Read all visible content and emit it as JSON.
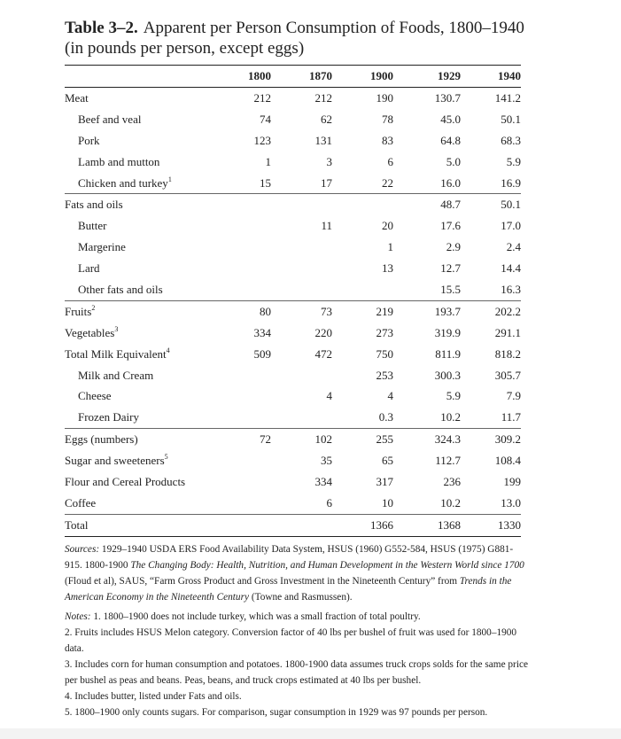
{
  "table": {
    "label": "Table 3–2.",
    "title": "Apparent per Person Consumption of Foods, 1800–1940",
    "subtitle": "(in pounds per person, except eggs)",
    "columns": [
      "1800",
      "1870",
      "1900",
      "1929",
      "1940"
    ],
    "sections": [
      [
        {
          "label": "Meat",
          "cells": [
            "212",
            "212",
            "190",
            "130.7",
            "141.2"
          ],
          "items": [
            {
              "label": "Beef and veal",
              "cells": [
                "74",
                "62",
                "78",
                "45.0",
                "50.1"
              ]
            },
            {
              "label": "Pork",
              "cells": [
                "123",
                "131",
                "83",
                "64.8",
                "68.3"
              ]
            },
            {
              "label": "Lamb and mutton",
              "cells": [
                "1",
                "3",
                "6",
                "5.0",
                "5.9"
              ]
            },
            {
              "label": "Chicken and turkey",
              "sup": "1",
              "cells": [
                "15",
                "17",
                "22",
                "16.0",
                "16.9"
              ]
            }
          ]
        }
      ],
      [
        {
          "label": "Fats and oils",
          "cells": [
            null,
            null,
            null,
            "48.7",
            "50.1"
          ],
          "items": [
            {
              "label": "Butter",
              "cells": [
                null,
                "11",
                "20",
                "17.6",
                "17.0"
              ]
            },
            {
              "label": "Margerine",
              "cells": [
                null,
                null,
                "1",
                "2.9",
                "2.4"
              ]
            },
            {
              "label": "Lard",
              "cells": [
                null,
                null,
                "13",
                "12.7",
                "14.4"
              ]
            },
            {
              "label": "Other fats and oils",
              "cells": [
                null,
                null,
                null,
                "15.5",
                "16.3"
              ]
            }
          ]
        }
      ],
      [
        {
          "label": "Fruits",
          "sup": "2",
          "cells": [
            "80",
            "73",
            "219",
            "193.7",
            "202.2"
          ]
        },
        {
          "label": "Vegetables",
          "sup": "3",
          "cells": [
            "334",
            "220",
            "273",
            "319.9",
            "291.1"
          ]
        },
        {
          "label": "Total Milk Equivalent",
          "sup": "4",
          "cells": [
            "509",
            "472",
            "750",
            "811.9",
            "818.2"
          ],
          "items": [
            {
              "label": "Milk and Cream",
              "cells": [
                null,
                null,
                "253",
                "300.3",
                "305.7"
              ]
            },
            {
              "label": "Cheese",
              "cells": [
                null,
                "4",
                "4",
                "5.9",
                "7.9"
              ]
            },
            {
              "label": "Frozen Dairy",
              "cells": [
                null,
                null,
                "0.3",
                "10.2",
                "11.7"
              ]
            }
          ]
        }
      ],
      [
        {
          "label": "Eggs (numbers)",
          "cells": [
            "72",
            "102",
            "255",
            "324.3",
            "309.2"
          ]
        },
        {
          "label": "Sugar and sweeteners",
          "sup": "5",
          "cells": [
            null,
            "35",
            "65",
            "112.7",
            "108.4"
          ]
        },
        {
          "label": "Flour and Cereal Products",
          "cells": [
            null,
            "334",
            "317",
            "236",
            "199"
          ]
        },
        {
          "label": "Coffee",
          "cells": [
            null,
            "6",
            "10",
            "10.2",
            "13.0"
          ]
        }
      ],
      [
        {
          "label": "Total",
          "cells": [
            null,
            null,
            "1366",
            "1368",
            "1330"
          ]
        }
      ]
    ]
  },
  "sources": [
    {
      "text": "Sources:",
      "italic": true
    },
    {
      "text": " 1929–1940 USDA ERS Food Availability Data System, HSUS (1960) G552-584, HSUS (1975) G881-915. 1800-1900 "
    },
    {
      "text": "The Changing Body: Health, Nutrition, and Human Development in the Western World since 1700",
      "italic": true
    },
    {
      "text": " (Floud et al), SAUS, “Farm Gross Product and Gross Investment in the Nineteenth Century” from "
    },
    {
      "text": "Trends in the American Economy in the Nineteenth Century",
      "italic": true
    },
    {
      "text": " (Towne and Rasmussen)."
    }
  ],
  "notes": [
    [
      {
        "text": "Notes:",
        "italic": true
      },
      {
        "text": " 1. 1800–1900 does not include turkey, which was a small fraction of total poultry."
      }
    ],
    [
      {
        "text": "2. Fruits includes HSUS Melon category. Conversion factor of 40 lbs per bushel of fruit was used for 1800–1900 data."
      }
    ],
    [
      {
        "text": "3. Includes corn for human consumption and potatoes. 1800-1900 data assumes truck crops solds for the same price per bushel as peas and beans. Peas, beans, and truck crops estimated at 40 lbs per bushel."
      }
    ],
    [
      {
        "text": "4. Includes butter, listed under Fats and oils."
      }
    ],
    [
      {
        "text": "5. 1800–1900 only counts sugars. For comparison, sugar consumption in 1929 was 97 pounds per person."
      }
    ]
  ]
}
